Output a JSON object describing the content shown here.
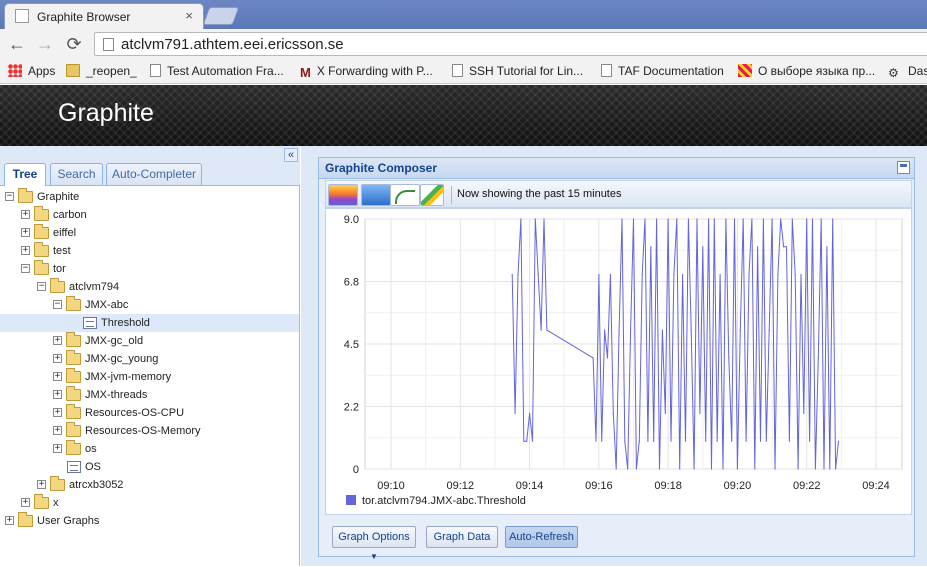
{
  "browser": {
    "tab_title": "Graphite Browser",
    "tab_close": "×",
    "back_glyph": "←",
    "forward_glyph": "→",
    "reload_glyph": "⟳",
    "url": "atclvm791.athtem.eei.ericsson.se",
    "bookmarks": [
      {
        "label": "Apps",
        "icon": "apps-grid-icon"
      },
      {
        "label": "_reopen_",
        "icon": "folder-icon"
      },
      {
        "label": "Test Automation Fra...",
        "icon": "page-icon"
      },
      {
        "label": "X Forwarding with P...",
        "icon": "m-logo-icon"
      },
      {
        "label": "SSH Tutorial for Lin...",
        "icon": "page-icon"
      },
      {
        "label": "TAF Documentation",
        "icon": "page-icon"
      },
      {
        "label": "О выборе языка пр...",
        "icon": "grid-logo-icon"
      },
      {
        "label": "Das",
        "icon": "bicycle-icon"
      }
    ]
  },
  "header": {
    "title": "Graphite"
  },
  "left_panel": {
    "collapse_glyph": "«",
    "tabs": [
      {
        "label": "Tree",
        "active": true
      },
      {
        "label": "Search",
        "active": false
      },
      {
        "label": "Auto-Completer",
        "active": false
      }
    ],
    "tree": [
      {
        "label": "Graphite",
        "depth": 0,
        "type": "folder",
        "expander": "−",
        "selected": false
      },
      {
        "label": "carbon",
        "depth": 1,
        "type": "folder",
        "expander": "+",
        "selected": false
      },
      {
        "label": "eiffel",
        "depth": 1,
        "type": "folder",
        "expander": "+",
        "selected": false
      },
      {
        "label": "test",
        "depth": 1,
        "type": "folder",
        "expander": "+",
        "selected": false
      },
      {
        "label": "tor",
        "depth": 1,
        "type": "folder",
        "expander": "−",
        "selected": false
      },
      {
        "label": "atclvm794",
        "depth": 2,
        "type": "folder",
        "expander": "−",
        "selected": false
      },
      {
        "label": "JMX-abc",
        "depth": 3,
        "type": "folder",
        "expander": "−",
        "selected": false
      },
      {
        "label": "Threshold",
        "depth": 4,
        "type": "leaf",
        "expander": "",
        "selected": true
      },
      {
        "label": "JMX-gc_old",
        "depth": 3,
        "type": "folder",
        "expander": "+",
        "selected": false
      },
      {
        "label": "JMX-gc_young",
        "depth": 3,
        "type": "folder",
        "expander": "+",
        "selected": false
      },
      {
        "label": "JMX-jvm-memory",
        "depth": 3,
        "type": "folder",
        "expander": "+",
        "selected": false
      },
      {
        "label": "JMX-threads",
        "depth": 3,
        "type": "folder",
        "expander": "+",
        "selected": false
      },
      {
        "label": "Resources-OS-CPU",
        "depth": 3,
        "type": "folder",
        "expander": "+",
        "selected": false
      },
      {
        "label": "Resources-OS-Memory",
        "depth": 3,
        "type": "folder",
        "expander": "+",
        "selected": false
      },
      {
        "label": "os",
        "depth": 3,
        "type": "folder",
        "expander": "+",
        "selected": false
      },
      {
        "label": "OS",
        "depth": 3,
        "type": "leaf",
        "expander": "",
        "selected": false
      },
      {
        "label": "atrcxb3052",
        "depth": 2,
        "type": "folder",
        "expander": "+",
        "selected": false
      },
      {
        "label": "x",
        "depth": 1,
        "type": "folder",
        "expander": "+",
        "selected": false
      },
      {
        "label": "User Graphs",
        "depth": 0,
        "type": "folder",
        "expander": "+",
        "selected": false
      }
    ]
  },
  "composer": {
    "title": "Graphite Composer",
    "status": "Now showing the past 15 minutes",
    "tool_icons": [
      "graph-icon",
      "calendar-icon",
      "recent-data-icon",
      "save-graph-icon"
    ],
    "buttons": {
      "graph_options": "Graph Options",
      "graph_options_caret": "▼",
      "graph_data": "Graph Data",
      "auto_refresh": "Auto-Refresh"
    }
  },
  "chart_data": {
    "type": "line",
    "title": "",
    "xlabel": "",
    "ylabel": "",
    "line_color": "#6464dc",
    "grid": true,
    "legend_placement": "bottom-left",
    "xlim": [
      "09:09:15",
      "09:24:45"
    ],
    "ylim": [
      0,
      9.0
    ],
    "x_ticks": [
      "09:10",
      "09:12",
      "09:14",
      "09:16",
      "09:18",
      "09:20",
      "09:22",
      "09:24"
    ],
    "y_ticks": [
      "0",
      "2.2",
      "4.5",
      "6.8",
      "9.0"
    ],
    "y_tick_values": [
      0,
      2.25,
      4.5,
      6.75,
      9.0
    ],
    "series": [
      {
        "name": "tor.atclvm794.JMX-abc.Threshold",
        "points": [
          [
            "09:13:30",
            7.0
          ],
          [
            "09:13:35",
            2.0
          ],
          [
            "09:13:40",
            7.0
          ],
          [
            "09:13:45",
            9.0
          ],
          [
            "09:13:50",
            1.0
          ],
          [
            "09:13:55",
            1.0
          ],
          [
            "09:14:00",
            2.0
          ],
          [
            "09:14:05",
            1.0
          ],
          [
            "09:14:10",
            9.0
          ],
          [
            "09:14:15",
            7.0
          ],
          [
            "09:14:20",
            5.0
          ],
          [
            "09:14:25",
            9.0
          ],
          [
            "09:14:30",
            5.0
          ],
          [
            "09:15:50",
            4.0
          ],
          [
            "09:15:55",
            1.0
          ],
          [
            "09:16:00",
            7.0
          ],
          [
            "09:16:05",
            1.0
          ],
          [
            "09:16:10",
            5.0
          ],
          [
            "09:16:15",
            4.0
          ],
          [
            "09:16:20",
            7.0
          ],
          [
            "09:16:25",
            2.0
          ],
          [
            "09:16:30",
            0.0
          ],
          [
            "09:16:35",
            5.0
          ],
          [
            "09:16:40",
            9.0
          ],
          [
            "09:16:45",
            1.0
          ],
          [
            "09:16:50",
            0.0
          ],
          [
            "09:16:55",
            5.0
          ],
          [
            "09:17:00",
            9.0
          ],
          [
            "09:17:05",
            0.0
          ],
          [
            "09:17:10",
            1.0
          ],
          [
            "09:17:15",
            7.0
          ],
          [
            "09:17:20",
            9.0
          ],
          [
            "09:17:25",
            1.0
          ],
          [
            "09:17:30",
            8.0
          ],
          [
            "09:17:35",
            1.0
          ],
          [
            "09:17:40",
            9.0
          ],
          [
            "09:17:45",
            0.0
          ],
          [
            "09:17:50",
            5.0
          ],
          [
            "09:17:55",
            2.0
          ],
          [
            "09:18:00",
            9.0
          ],
          [
            "09:18:05",
            1.0
          ],
          [
            "09:18:10",
            7.0
          ],
          [
            "09:18:15",
            9.0
          ],
          [
            "09:18:20",
            0.0
          ],
          [
            "09:18:25",
            7.0
          ],
          [
            "09:18:30",
            1.0
          ],
          [
            "09:18:35",
            9.0
          ],
          [
            "09:18:40",
            5.0
          ],
          [
            "09:18:45",
            0.0
          ],
          [
            "09:18:50",
            9.0
          ],
          [
            "09:18:55",
            2.0
          ],
          [
            "09:19:00",
            8.0
          ],
          [
            "09:19:05",
            1.0
          ],
          [
            "09:19:10",
            9.0
          ],
          [
            "09:19:15",
            0.0
          ],
          [
            "09:19:20",
            9.0
          ],
          [
            "09:19:25",
            1.0
          ],
          [
            "09:19:30",
            7.0
          ],
          [
            "09:19:35",
            0.0
          ],
          [
            "09:19:40",
            9.0
          ],
          [
            "09:19:45",
            4.0
          ],
          [
            "09:19:50",
            1.0
          ],
          [
            "09:19:55",
            9.0
          ],
          [
            "09:20:00",
            0.0
          ],
          [
            "09:20:05",
            5.0
          ],
          [
            "09:20:10",
            9.0
          ],
          [
            "09:20:15",
            1.0
          ],
          [
            "09:20:20",
            7.0
          ],
          [
            "09:20:25",
            9.0
          ],
          [
            "09:20:30",
            0.0
          ],
          [
            "09:20:35",
            8.0
          ],
          [
            "09:20:40",
            1.0
          ],
          [
            "09:20:45",
            9.0
          ],
          [
            "09:20:50",
            1.0
          ],
          [
            "09:20:55",
            5.0
          ],
          [
            "09:21:00",
            9.0
          ],
          [
            "09:21:05",
            0.0
          ],
          [
            "09:21:10",
            7.0
          ],
          [
            "09:21:15",
            9.0
          ],
          [
            "09:21:20",
            8.0
          ],
          [
            "09:21:25",
            8.0
          ],
          [
            "09:21:30",
            1.0
          ],
          [
            "09:21:35",
            9.0
          ],
          [
            "09:21:40",
            7.0
          ],
          [
            "09:21:45",
            0.0
          ],
          [
            "09:21:50",
            7.0
          ],
          [
            "09:21:55",
            2.0
          ],
          [
            "09:22:00",
            9.0
          ],
          [
            "09:22:05",
            1.0
          ],
          [
            "09:22:10",
            9.0
          ],
          [
            "09:22:15",
            0.0
          ],
          [
            "09:22:20",
            4.0
          ],
          [
            "09:22:25",
            9.0
          ],
          [
            "09:22:30",
            0.0
          ],
          [
            "09:22:35",
            8.0
          ],
          [
            "09:22:40",
            0.0
          ],
          [
            "09:22:45",
            9.0
          ],
          [
            "09:22:50",
            0.0
          ],
          [
            "09:22:55",
            1.0
          ]
        ]
      }
    ]
  }
}
